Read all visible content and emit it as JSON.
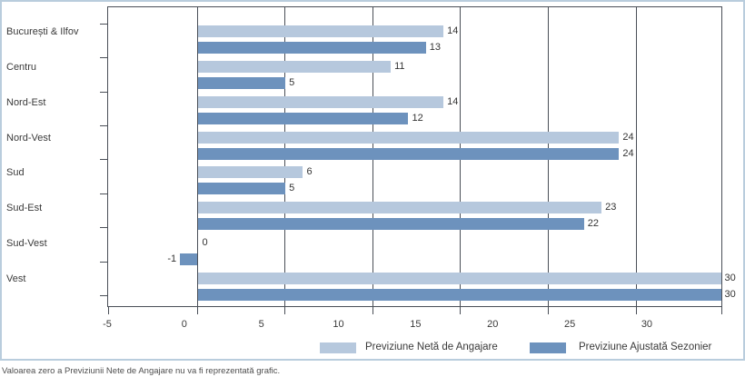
{
  "chart_data": {
    "type": "bar",
    "orientation": "horizontal",
    "title": "",
    "categories": [
      "București & Ilfov",
      "Centru",
      "Nord-Est",
      "Nord-Vest",
      "Sud",
      "Sud-Est",
      "Sud-Vest",
      "Vest"
    ],
    "series": [
      {
        "name": "Previziune Netă de Angajare",
        "color": "#b6c8dd",
        "values": [
          14,
          11,
          14,
          24,
          6,
          23,
          0,
          30
        ]
      },
      {
        "name": "Previziune Ajustată Sezonier",
        "color": "#6d92bd",
        "values": [
          13,
          5,
          12,
          24,
          5,
          22,
          -1,
          30
        ]
      }
    ],
    "x_ticks": [
      -5,
      0,
      5,
      10,
      15,
      20,
      25,
      30
    ],
    "xlim": [
      -5,
      30
    ],
    "grid": true,
    "legend_position": "bottom",
    "value_labels": true
  },
  "legend": {
    "net_label": "Previziune Netă de Angajare",
    "adjusted_label": "Previziune Ajustată Sezonier"
  },
  "footnote": "Valoarea zero a Previziunii Nete de Angajare nu va fi reprezentată grafic."
}
